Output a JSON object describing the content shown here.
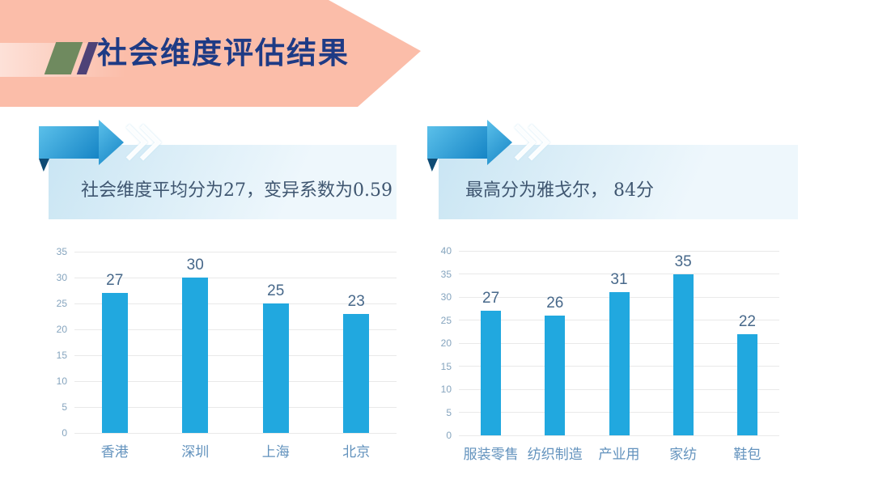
{
  "header": {
    "title": "社会维度评估结果"
  },
  "callouts": {
    "left": {
      "text": "社会维度平均分为27，变异系数为0.59"
    },
    "right": {
      "text": "最高分为雅戈尔， 84分"
    }
  },
  "colors": {
    "banner": "#FBBDA9",
    "slash_green": "#6F8A5F",
    "slash_purple": "#4E4277",
    "title": "#1E3B85",
    "arrow_light": "#5BC0EA",
    "arrow_dark": "#1584C5",
    "arrow_fold": "#0E4B74",
    "box_start": "#C9E5F3",
    "box_end": "#EEF7FC",
    "callout_text": "#3F5670",
    "bar": "#21A8DF",
    "gridline": "#E9E9E9",
    "ytick": "#85A4BE",
    "value_label": "#47688A",
    "category_label": "#6292BD"
  },
  "chart_data": [
    {
      "type": "bar",
      "categories": [
        "香港",
        "深圳",
        "上海",
        "北京"
      ],
      "values": [
        27,
        30,
        25,
        23
      ],
      "ylim": [
        0,
        35
      ],
      "ytick_step": 5,
      "yticks": [
        0,
        5,
        10,
        15,
        20,
        25,
        30,
        35
      ],
      "grid": true,
      "data_labels": true,
      "legend": "none",
      "bar_color": "#21A8DF"
    },
    {
      "type": "bar",
      "categories": [
        "服装零售",
        "纺织制造",
        "产业用",
        "家纺",
        "鞋包"
      ],
      "values": [
        27,
        26,
        31,
        35,
        22
      ],
      "ylim": [
        0,
        40
      ],
      "ytick_step": 5,
      "yticks": [
        0,
        5,
        10,
        15,
        20,
        25,
        30,
        35,
        40
      ],
      "grid": true,
      "data_labels": true,
      "legend": "none",
      "bar_color": "#21A8DF"
    }
  ]
}
